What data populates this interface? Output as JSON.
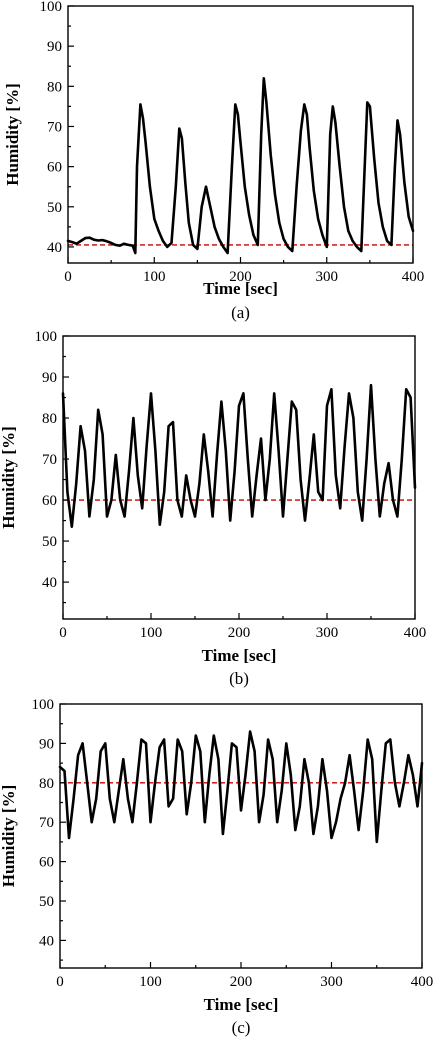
{
  "chart_data": [
    {
      "type": "line",
      "caption": "(a)",
      "xlabel": "Time [sec]",
      "ylabel": "Humidity [%]",
      "xlim": [
        0,
        400
      ],
      "ylim": [
        36,
        100
      ],
      "xticks": [
        0,
        100,
        200,
        300,
        400
      ],
      "yticks": [
        40,
        50,
        60,
        70,
        80,
        90,
        100
      ],
      "tick_labels_x": [
        "0",
        "100",
        "200",
        "300",
        "400"
      ],
      "tick_labels_y": [
        "40",
        "50",
        "60",
        "70",
        "80",
        "90",
        "100"
      ],
      "reference_line": {
        "y": 40.5,
        "color": "#cc0000",
        "style": "dashed"
      },
      "series_color": "#000000",
      "grid": false,
      "series": [
        {
          "x": [
            0,
            5,
            10,
            15,
            20,
            25,
            30,
            35,
            40,
            45,
            50,
            55,
            60,
            65,
            70,
            75,
            78,
            80,
            84,
            87,
            90,
            95,
            100,
            105,
            110,
            115,
            120,
            125,
            129,
            132,
            136,
            140,
            145,
            150,
            155,
            160,
            165,
            170,
            175,
            180,
            185,
            190,
            194,
            197,
            200,
            205,
            210,
            215,
            220,
            224,
            227,
            230,
            235,
            240,
            245,
            250,
            255,
            260,
            265,
            270,
            274,
            277,
            280,
            285,
            290,
            295,
            300,
            304,
            307,
            310,
            315,
            320,
            325,
            330,
            335,
            340,
            344,
            347,
            350,
            355,
            360,
            365,
            370,
            375,
            379,
            382,
            385,
            390,
            395,
            400
          ],
          "y": [
            41.5,
            41.2,
            40.8,
            41.5,
            42.2,
            42.3,
            41.8,
            41.6,
            41.7,
            41.4,
            41.0,
            40.5,
            40.3,
            40.8,
            40.5,
            40.3,
            38.5,
            60,
            75.5,
            72,
            66,
            55,
            47,
            44,
            41.5,
            40,
            41,
            55,
            69.5,
            67,
            56,
            46,
            40.5,
            39.5,
            50,
            55,
            50,
            45,
            42,
            40,
            38.5,
            60,
            75.5,
            73,
            66,
            55,
            48,
            43,
            40.5,
            68,
            82,
            76,
            63,
            53,
            46,
            42,
            40,
            39,
            55,
            69,
            75.5,
            73,
            65,
            54,
            47,
            43,
            40,
            68,
            75,
            71,
            60,
            50,
            44,
            41.5,
            40,
            39,
            60,
            76,
            75,
            62,
            51,
            45,
            41.5,
            40.5,
            60,
            71.5,
            68,
            56,
            47.5,
            44
          ]
        }
      ]
    },
    {
      "type": "line",
      "caption": "(b)",
      "xlabel": "Time [sec]",
      "ylabel": "Humidity [%]",
      "xlim": [
        0,
        400
      ],
      "ylim": [
        31,
        100
      ],
      "xticks": [
        0,
        100,
        200,
        300,
        400
      ],
      "yticks": [
        40,
        50,
        60,
        70,
        80,
        90,
        100
      ],
      "tick_labels_x": [
        "0",
        "100",
        "200",
        "300",
        "400"
      ],
      "tick_labels_y": [
        "40",
        "50",
        "60",
        "70",
        "80",
        "90",
        "100"
      ],
      "reference_line": {
        "y": 60,
        "color": "#cc0000",
        "style": "dashed"
      },
      "series_color": "#000000",
      "grid": false,
      "series": [
        {
          "x": [
            0,
            5,
            10,
            15,
            20,
            25,
            30,
            35,
            40,
            45,
            50,
            55,
            60,
            65,
            70,
            75,
            80,
            85,
            90,
            95,
            100,
            105,
            110,
            115,
            120,
            125,
            130,
            135,
            140,
            145,
            150,
            155,
            160,
            165,
            170,
            175,
            180,
            185,
            190,
            195,
            200,
            205,
            210,
            215,
            220,
            225,
            230,
            235,
            240,
            245,
            250,
            255,
            260,
            265,
            270,
            275,
            280,
            285,
            290,
            295,
            300,
            305,
            310,
            315,
            320,
            325,
            330,
            335,
            340,
            345,
            350,
            355,
            360,
            365,
            370,
            375,
            380,
            385,
            390,
            395,
            400
          ],
          "y": [
            86,
            62,
            53.5,
            64,
            78,
            72,
            56,
            65,
            82,
            76,
            56,
            60,
            71,
            60,
            56,
            67,
            80,
            66,
            58,
            73,
            86,
            72,
            54,
            62,
            78,
            79,
            60,
            56,
            66,
            60,
            56,
            64,
            76,
            67,
            56,
            71,
            84,
            72,
            55,
            67,
            83,
            86,
            70,
            56,
            66,
            75,
            60,
            70,
            86,
            72,
            56,
            70,
            84,
            82,
            65,
            55,
            65,
            76,
            62,
            60,
            83,
            87,
            66,
            58,
            73,
            86,
            80,
            62,
            55,
            70,
            88,
            70,
            56,
            64,
            69,
            60,
            56,
            70,
            87,
            85,
            63
          ]
        }
      ]
    },
    {
      "type": "line",
      "caption": "(c)",
      "xlabel": "Time [sec]",
      "ylabel": "Humidity [%]",
      "xlim": [
        0,
        400
      ],
      "ylim": [
        33,
        100
      ],
      "xticks": [
        0,
        100,
        200,
        300,
        400
      ],
      "yticks": [
        40,
        50,
        60,
        70,
        80,
        90,
        100
      ],
      "tick_labels_x": [
        "0",
        "100",
        "200",
        "300",
        "400"
      ],
      "tick_labels_y": [
        "40",
        "50",
        "60",
        "70",
        "80",
        "90",
        "100"
      ],
      "reference_line": {
        "y": 80,
        "color": "#cc0000",
        "style": "dashed"
      },
      "series_color": "#000000",
      "grid": false,
      "series": [
        {
          "x": [
            0,
            5,
            10,
            15,
            20,
            25,
            30,
            35,
            40,
            45,
            50,
            55,
            60,
            65,
            70,
            75,
            80,
            85,
            90,
            95,
            100,
            105,
            110,
            115,
            120,
            125,
            130,
            135,
            140,
            145,
            150,
            155,
            160,
            165,
            170,
            175,
            180,
            185,
            190,
            195,
            200,
            205,
            210,
            215,
            220,
            225,
            230,
            235,
            240,
            245,
            250,
            255,
            260,
            265,
            270,
            275,
            280,
            285,
            290,
            295,
            300,
            305,
            310,
            315,
            320,
            325,
            330,
            335,
            340,
            345,
            350,
            355,
            360,
            365,
            370,
            375,
            380,
            385,
            390,
            395,
            400
          ],
          "y": [
            84,
            83,
            66,
            76,
            87,
            90,
            80,
            70,
            76,
            88,
            90,
            76,
            70,
            78,
            86,
            76,
            70,
            80,
            91,
            90,
            70,
            80,
            89,
            91,
            74,
            76,
            91,
            88,
            72,
            80,
            92,
            88,
            70,
            82,
            92,
            86,
            67,
            78,
            90,
            89,
            73,
            82,
            93,
            88,
            70,
            77,
            91,
            86,
            70,
            78,
            90,
            82,
            68,
            74,
            86,
            80,
            67,
            74,
            86,
            78,
            66,
            70,
            76,
            80,
            87,
            78,
            68,
            78,
            91,
            86,
            65,
            78,
            90,
            91,
            80,
            74,
            80,
            87,
            82,
            74,
            85
          ]
        }
      ]
    }
  ]
}
